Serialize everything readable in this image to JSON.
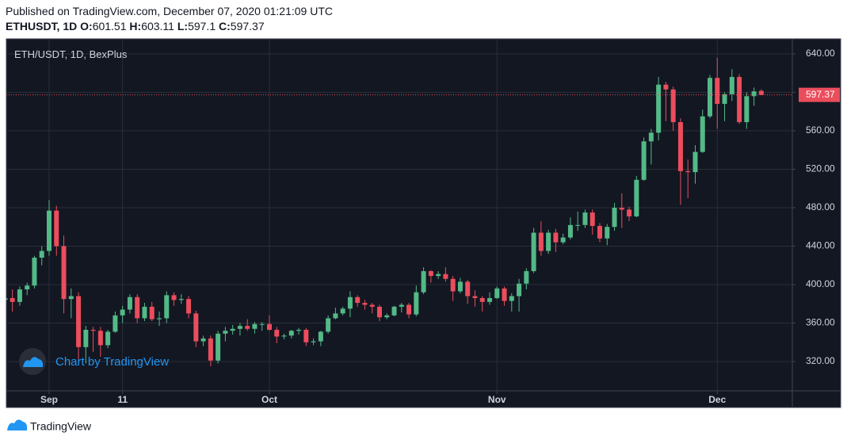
{
  "header": {
    "published": "Published on TradingView.com, December 07, 2020 01:21:09 UTC",
    "symbol": "ETHUSDT, 1D",
    "ohlc_labels": [
      "O:",
      "H:",
      "L:",
      "C:"
    ]
  },
  "footer": {
    "brand": "TradingView"
  },
  "chart_data": {
    "type": "candlestick",
    "title": "ETH/USDT, 1D, BexPlus",
    "watermark": "Chart by TradingView",
    "up_color": "#53b987",
    "down_color": "#eb4d5c",
    "grid": true,
    "categories": [
      null,
      null,
      null,
      null,
      null,
      null,
      "Sep",
      null,
      null,
      null,
      null,
      null,
      null,
      null,
      null,
      null,
      "11",
      null,
      null,
      null,
      null,
      null,
      null,
      null,
      null,
      null,
      null,
      null,
      null,
      null,
      null,
      null,
      null,
      null,
      null,
      null,
      "Oct",
      null,
      null,
      null,
      null,
      null,
      null,
      null,
      null,
      null,
      null,
      null,
      null,
      null,
      null,
      null,
      null,
      null,
      null,
      null,
      null,
      null,
      null,
      null,
      null,
      null,
      null,
      null,
      null,
      null,
      null,
      "Nov",
      null,
      null,
      null,
      null,
      null,
      null,
      null,
      null,
      null,
      null,
      null,
      null,
      null,
      null,
      null,
      null,
      null,
      null,
      null,
      null,
      null,
      null,
      null,
      null,
      null,
      null,
      null,
      null,
      null,
      "Dec",
      null,
      null,
      null,
      null,
      null,
      null
    ],
    "open": [
      384,
      386,
      382,
      395,
      399,
      428,
      435,
      477,
      440,
      385,
      388,
      335,
      353,
      352,
      337,
      351,
      368,
      374,
      387,
      365,
      377,
      364,
      365,
      389,
      384,
      385,
      370,
      341,
      344,
      321,
      349,
      352,
      354,
      357,
      354,
      359,
      359,
      353,
      346,
      347,
      352,
      353,
      340,
      341,
      351,
      365,
      370,
      375,
      387,
      381,
      379,
      377,
      366,
      368,
      377,
      379,
      369,
      392,
      414,
      409,
      411,
      406,
      393,
      403,
      388,
      386,
      382,
      386,
      396,
      383,
      388,
      401,
      414,
      454,
      435,
      454,
      444,
      449,
      462,
      462,
      475,
      461,
      448,
      460,
      480,
      478,
      471,
      509,
      549,
      558,
      608,
      603,
      569,
      518,
      517,
      538,
      575,
      615,
      588,
      598,
      616,
      569,
      596,
      601.51
    ],
    "high": [
      390,
      395,
      398,
      402,
      430,
      440,
      488,
      482,
      451,
      396,
      392,
      357,
      356,
      356,
      353,
      372,
      378,
      390,
      390,
      381,
      382,
      372,
      393,
      392,
      390,
      388,
      373,
      347,
      347,
      352,
      356,
      358,
      360,
      364,
      361,
      361,
      368,
      356,
      349,
      353,
      355,
      355,
      344,
      352,
      368,
      376,
      377,
      393,
      389,
      384,
      381,
      379,
      370,
      378,
      381,
      381,
      399,
      418,
      415,
      414,
      418,
      409,
      407,
      405,
      394,
      388,
      392,
      398,
      398,
      391,
      406,
      417,
      459,
      466,
      457,
      458,
      453,
      470,
      476,
      478,
      478,
      464,
      463,
      485,
      495,
      481,
      513,
      553,
      562,
      616,
      611,
      606,
      573,
      530,
      545,
      582,
      618,
      636,
      600,
      624,
      619,
      600,
      605,
      603.11
    ],
    "low": [
      375,
      372,
      378,
      389,
      396,
      420,
      430,
      430,
      370,
      365,
      320,
      318,
      330,
      325,
      334,
      350,
      360,
      370,
      360,
      362,
      362,
      357,
      360,
      378,
      380,
      365,
      335,
      336,
      315,
      318,
      341,
      348,
      347,
      352,
      349,
      352,
      352,
      339,
      343,
      344,
      348,
      336,
      337,
      336,
      349,
      364,
      368,
      366,
      377,
      374,
      370,
      362,
      364,
      367,
      371,
      365,
      367,
      390,
      402,
      406,
      403,
      383,
      391,
      380,
      377,
      372,
      379,
      385,
      378,
      372,
      372,
      395,
      412,
      430,
      432,
      434,
      442,
      447,
      456,
      459,
      452,
      444,
      441,
      456,
      459,
      466,
      470,
      508,
      525,
      550,
      570,
      560,
      483,
      490,
      505,
      537,
      573,
      562,
      570,
      591,
      567,
      562,
      586,
      597.1
    ],
    "close": [
      386,
      382,
      395,
      399,
      428,
      435,
      477,
      440,
      385,
      388,
      335,
      353,
      352,
      337,
      351,
      368,
      374,
      387,
      365,
      377,
      364,
      365,
      389,
      384,
      385,
      370,
      341,
      344,
      321,
      349,
      352,
      354,
      357,
      354,
      359,
      359,
      353,
      346,
      347,
      352,
      353,
      340,
      341,
      351,
      365,
      370,
      375,
      387,
      381,
      379,
      377,
      366,
      368,
      377,
      379,
      369,
      392,
      414,
      409,
      411,
      406,
      393,
      403,
      388,
      386,
      382,
      386,
      396,
      383,
      388,
      401,
      414,
      454,
      435,
      454,
      444,
      449,
      462,
      462,
      475,
      461,
      448,
      460,
      480,
      478,
      471,
      509,
      549,
      558,
      608,
      603,
      569,
      518,
      517,
      538,
      575,
      615,
      588,
      598,
      616,
      569,
      596,
      601,
      597.37
    ],
    "ylim": [
      289.5,
      654.8
    ],
    "yticks": [
      {
        "value": 320,
        "label": "320.00"
      },
      {
        "value": 360,
        "label": "360.00"
      },
      {
        "value": 400,
        "label": "400.00"
      },
      {
        "value": 440,
        "label": "440.00"
      },
      {
        "value": 480,
        "label": "480.00"
      },
      {
        "value": 520,
        "label": "520.00"
      },
      {
        "value": 560,
        "label": "560.00"
      },
      {
        "value": 600,
        "label": "600.00"
      },
      {
        "value": 640,
        "label": "640.00"
      }
    ]
  }
}
